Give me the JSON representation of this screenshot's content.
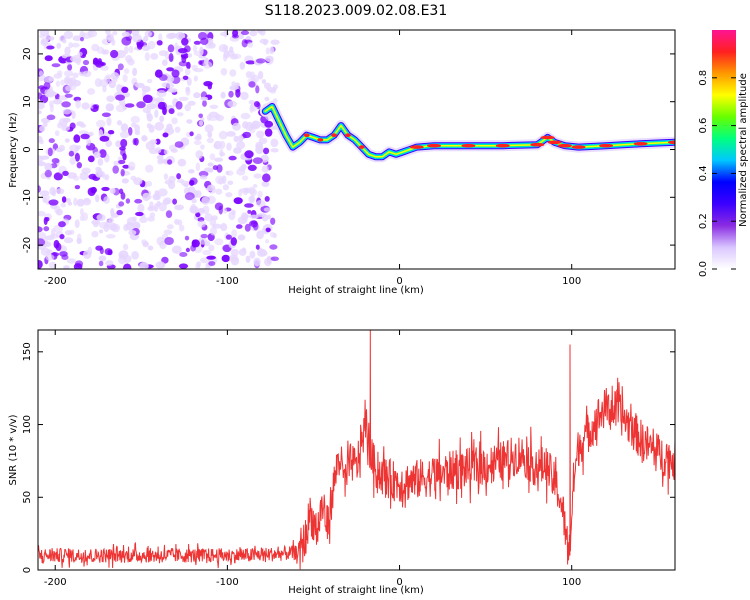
{
  "figure_title": "S118.2023.009.02.08.E31",
  "colors": {
    "snr_line": "#ee3333",
    "weak_speckle": "#e6d6ff",
    "strong_speckle": "#7a00ff",
    "colormap": [
      "#ffffff",
      "#d9c6ff",
      "#8a2be2",
      "#3b00ff",
      "#0000ff",
      "#00c8ff",
      "#00ff80",
      "#66ff00",
      "#ffff00",
      "#ff9900",
      "#ff2020",
      "#ff1493"
    ]
  },
  "chart_data": [
    {
      "type": "heatmap",
      "title": "S118.2023.009.02.08.E31",
      "xlabel": "Height of straight line (km)",
      "ylabel": "Frequency (Hz)",
      "xlim": [
        -210,
        160
      ],
      "ylim": [
        -25,
        25
      ],
      "xticks": [
        -200,
        -100,
        0,
        100
      ],
      "yticks": [
        -20,
        -10,
        0,
        10,
        20
      ],
      "grid": false,
      "noise_region_x": [
        -210,
        -72
      ],
      "doppler_trace": {
        "x": [
          -78,
          -74,
          -70,
          -66,
          -62,
          -58,
          -54,
          -50,
          -46,
          -42,
          -38,
          -34,
          -30,
          -26,
          -22,
          -18,
          -14,
          -10,
          -6,
          -2,
          2,
          6,
          10,
          20,
          40,
          60,
          80,
          86,
          90,
          96,
          104,
          120,
          140,
          160
        ],
        "y": [
          8,
          9,
          6,
          3,
          0.5,
          1.5,
          3,
          2.5,
          2,
          2,
          3,
          5,
          3,
          2,
          0.5,
          -1,
          -1.5,
          -1.5,
          -0.5,
          -1,
          -0.5,
          0,
          0.5,
          0.8,
          0.8,
          0.8,
          1,
          2.5,
          1.5,
          0.8,
          0.5,
          0.8,
          1.2,
          1.5
        ],
        "peak_amplitude": 0.95
      },
      "colorbar": {
        "label": "Normalized spectral amplitude",
        "range": [
          0,
          1
        ],
        "ticks": [
          "0.0",
          "0.2",
          "0.4",
          "0.6",
          "0.8"
        ]
      }
    },
    {
      "type": "line",
      "xlabel": "Height of straight line (km)",
      "ylabel": "SNR (10 * v/v)",
      "xlim": [
        -210,
        160
      ],
      "ylim": [
        0,
        165
      ],
      "xticks": [
        -200,
        -100,
        0,
        100
      ],
      "yticks": [
        0,
        50,
        100,
        150
      ],
      "grid": false,
      "series": [
        {
          "x": [
            -210,
            -180,
            -150,
            -120,
            -90,
            -70,
            -60,
            -55,
            -52,
            -48,
            -45,
            -42,
            -38,
            -35,
            -32,
            -28,
            -25,
            -22,
            -19,
            -17,
            -14,
            -10,
            -5,
            0,
            10,
            20,
            30,
            40,
            50,
            60,
            70,
            75,
            80,
            85,
            88,
            92,
            95,
            97,
            99,
            101,
            104,
            110,
            115,
            120,
            125,
            130,
            140,
            150,
            160
          ],
          "values": [
            10,
            10,
            10,
            10,
            10,
            11,
            12,
            20,
            40,
            25,
            45,
            30,
            60,
            80,
            60,
            75,
            70,
            90,
            100,
            80,
            70,
            65,
            62,
            60,
            62,
            65,
            68,
            70,
            72,
            75,
            80,
            75,
            70,
            72,
            65,
            55,
            40,
            20,
            15,
            60,
            85,
            95,
            105,
            112,
            110,
            105,
            90,
            80,
            75
          ]
        }
      ],
      "annotations": [
        {
          "x": -17,
          "value": 165
        },
        {
          "x": 99,
          "value": 155
        }
      ]
    }
  ]
}
